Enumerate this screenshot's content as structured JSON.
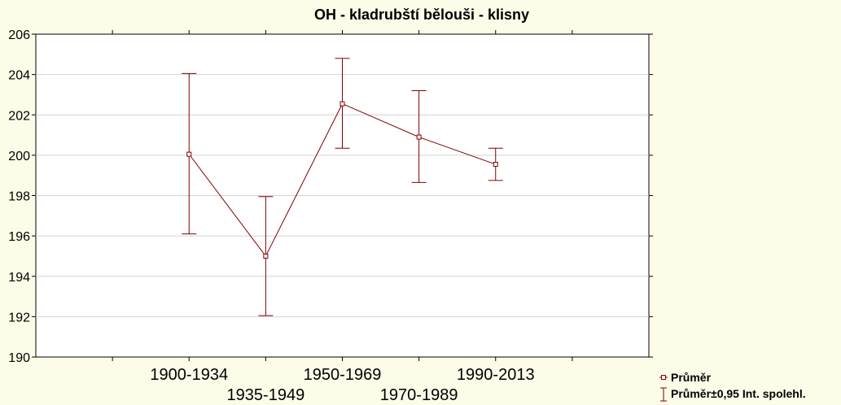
{
  "chart_data": {
    "type": "line",
    "title": "OH - kladrubští bělouši - klisny",
    "xlabel": "",
    "ylabel": "",
    "categories": [
      "1900-1934",
      "1935-1949",
      "1950-1969",
      "1970-1989",
      "1990-2013"
    ],
    "ylim": [
      190,
      206
    ],
    "yticks": [
      190,
      192,
      194,
      196,
      198,
      200,
      202,
      204,
      206
    ],
    "grid": true,
    "series": [
      {
        "name": "Průměr",
        "values": [
          200.05,
          195.0,
          202.55,
          200.9,
          199.55
        ],
        "ci_low": [
          196.1,
          192.05,
          200.35,
          198.65,
          198.75
        ],
        "ci_high": [
          204.05,
          197.95,
          204.8,
          203.2,
          200.35
        ]
      }
    ],
    "legend": {
      "position": "bottom-right",
      "entries": [
        "Průměr",
        "Průměr±0,95 Int. spolehl."
      ]
    },
    "colors": {
      "series": "#800000",
      "grid": "#d4d4d4",
      "background": "#fdfce9",
      "plot": "#ffffff"
    }
  }
}
